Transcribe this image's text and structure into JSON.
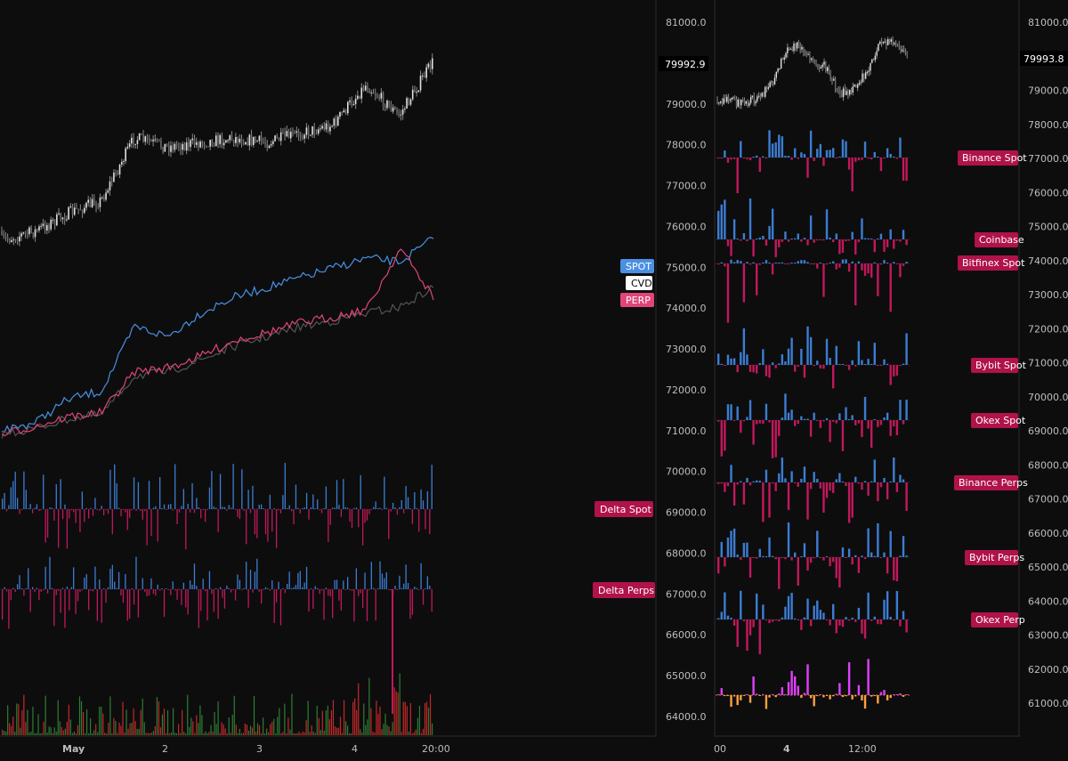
{
  "colors": {
    "background": "#0d0d0e",
    "axis_text": "#bdbdbd",
    "spot": "#4a90e2",
    "cvd": "#ffffff",
    "perp": "#e0457a",
    "delta_pos": "#3c7dd2",
    "delta_neg": "#c2185b",
    "label_bg": "#b0124a",
    "magenta": "#e040fb",
    "orange": "#ffa040",
    "vol_green": "#2e7d32",
    "vol_red": "#c62828"
  },
  "left_panel": {
    "price_label": "79992.9",
    "x_ticks": [
      "May",
      "2",
      "3",
      "4",
      "20:00"
    ],
    "legend": [
      "SPOT",
      "CVD",
      "PERP"
    ],
    "delta_labels": [
      "Delta Spot",
      "Delta Perps"
    ]
  },
  "right_panel": {
    "price_label": "79993.8",
    "x_ticks": [
      "00",
      "4",
      "12:00"
    ],
    "exchange_labels": [
      "Binance Spot",
      "Coinbase",
      "Bitfinex Spot",
      "Bybit Spot",
      "Okex Spot",
      "Binance Perps",
      "Bybit Perps",
      "Okex Perp"
    ]
  },
  "chart_data": [
    {
      "type": "line",
      "panel": "left",
      "series": [
        {
          "name": "SPOT",
          "description_only": false,
          "y": [
            2,
            6,
            18,
            22,
            55,
            50,
            62,
            70,
            75,
            80,
            85,
            90,
            88,
            100
          ]
        },
        {
          "name": "CVD",
          "y": [
            0,
            3,
            8,
            10,
            30,
            32,
            38,
            45,
            50,
            55,
            58,
            62,
            65,
            75
          ]
        },
        {
          "name": "PERP",
          "y": [
            0,
            4,
            9,
            11,
            32,
            34,
            40,
            48,
            52,
            57,
            60,
            64,
            95,
            70
          ]
        }
      ],
      "price_axis": {
        "min": 64000,
        "max": 81000,
        "ticks": [
          81000.0,
          80000.0,
          79000.0,
          78000.0,
          77000.0,
          76000.0,
          75000.0,
          74000.0,
          73000.0,
          72000.0,
          71000.0,
          70000.0,
          69000.0,
          68000.0,
          67000.0,
          66000.0,
          65000.0,
          64000.0
        ]
      },
      "price_path": [
        76000,
        76200,
        76600,
        76900,
        78300,
        78100,
        78200,
        78300,
        78200,
        78400,
        78600,
        79500,
        78800,
        79993
      ]
    },
    {
      "type": "bar",
      "panel": "right",
      "price_axis": {
        "min": 61000,
        "max": 81000,
        "ticks": [
          81000.0,
          80000.0,
          79000.0,
          78000.0,
          77000.0,
          76000.0,
          75000.0,
          74000.0,
          73000.0,
          72000.0,
          71000.0,
          70000.0,
          69000.0,
          68000.0,
          67000.0,
          66000.0,
          65000.0,
          64000.0,
          63000.0,
          62000.0,
          61000.0
        ]
      }
    }
  ]
}
